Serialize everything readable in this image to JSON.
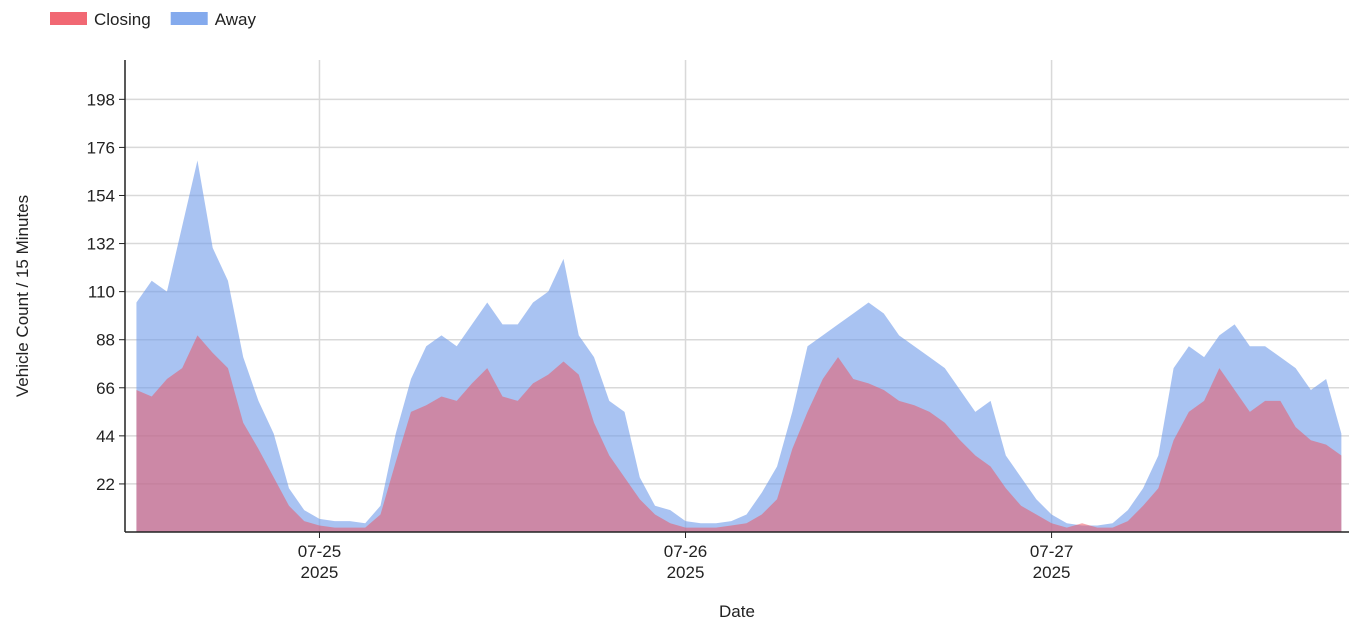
{
  "chart_data": {
    "type": "area",
    "xlabel": "Date",
    "ylabel": "Vehicle Count / 15 Minutes",
    "x": [
      "2025-07-24 12:00",
      "2025-07-24 13:00",
      "2025-07-24 14:00",
      "2025-07-24 15:00",
      "2025-07-24 16:00",
      "2025-07-24 17:00",
      "2025-07-24 18:00",
      "2025-07-24 19:00",
      "2025-07-24 20:00",
      "2025-07-24 21:00",
      "2025-07-24 22:00",
      "2025-07-24 23:00",
      "2025-07-25 00:00",
      "2025-07-25 01:00",
      "2025-07-25 02:00",
      "2025-07-25 03:00",
      "2025-07-25 04:00",
      "2025-07-25 05:00",
      "2025-07-25 06:00",
      "2025-07-25 07:00",
      "2025-07-25 08:00",
      "2025-07-25 09:00",
      "2025-07-25 10:00",
      "2025-07-25 11:00",
      "2025-07-25 12:00",
      "2025-07-25 13:00",
      "2025-07-25 14:00",
      "2025-07-25 15:00",
      "2025-07-25 16:00",
      "2025-07-25 17:00",
      "2025-07-25 18:00",
      "2025-07-25 19:00",
      "2025-07-25 20:00",
      "2025-07-25 21:00",
      "2025-07-25 22:00",
      "2025-07-25 23:00",
      "2025-07-26 00:00",
      "2025-07-26 01:00",
      "2025-07-26 02:00",
      "2025-07-26 03:00",
      "2025-07-26 04:00",
      "2025-07-26 05:00",
      "2025-07-26 06:00",
      "2025-07-26 07:00",
      "2025-07-26 08:00",
      "2025-07-26 09:00",
      "2025-07-26 10:00",
      "2025-07-26 11:00",
      "2025-07-26 12:00",
      "2025-07-26 13:00",
      "2025-07-26 14:00",
      "2025-07-26 15:00",
      "2025-07-26 16:00",
      "2025-07-26 17:00",
      "2025-07-26 18:00",
      "2025-07-26 19:00",
      "2025-07-26 20:00",
      "2025-07-26 21:00",
      "2025-07-26 22:00",
      "2025-07-26 23:00",
      "2025-07-27 00:00",
      "2025-07-27 01:00",
      "2025-07-27 02:00",
      "2025-07-27 03:00",
      "2025-07-27 04:00",
      "2025-07-27 05:00",
      "2025-07-27 06:00",
      "2025-07-27 07:00",
      "2025-07-27 08:00",
      "2025-07-27 09:00",
      "2025-07-27 10:00",
      "2025-07-27 11:00",
      "2025-07-27 12:00",
      "2025-07-27 13:00",
      "2025-07-27 14:00",
      "2025-07-27 15:00",
      "2025-07-27 16:00",
      "2025-07-27 17:00",
      "2025-07-27 18:00",
      "2025-07-27 19:00"
    ],
    "series": [
      {
        "name": "Away",
        "color": "#6f9bea",
        "values": [
          105,
          115,
          110,
          140,
          170,
          130,
          115,
          80,
          60,
          45,
          20,
          10,
          6,
          5,
          5,
          4,
          12,
          45,
          70,
          85,
          90,
          85,
          95,
          105,
          95,
          95,
          105,
          110,
          125,
          90,
          80,
          60,
          55,
          25,
          12,
          10,
          5,
          4,
          4,
          5,
          8,
          18,
          30,
          55,
          85,
          90,
          95,
          100,
          105,
          100,
          90,
          85,
          80,
          75,
          65,
          55,
          60,
          35,
          25,
          15,
          8,
          4,
          3,
          3,
          4,
          10,
          20,
          35,
          75,
          85,
          80,
          90,
          95,
          85,
          85,
          80,
          75,
          65,
          70,
          45
        ]
      },
      {
        "name": "Closing",
        "color": "#ef4d5a",
        "values": [
          65,
          62,
          70,
          75,
          90,
          82,
          75,
          50,
          38,
          25,
          12,
          5,
          3,
          2,
          2,
          2,
          8,
          32,
          55,
          58,
          62,
          60,
          68,
          75,
          62,
          60,
          68,
          72,
          78,
          72,
          50,
          35,
          25,
          15,
          8,
          4,
          2,
          2,
          2,
          3,
          4,
          8,
          15,
          38,
          55,
          70,
          80,
          70,
          68,
          65,
          60,
          58,
          55,
          50,
          42,
          35,
          30,
          20,
          12,
          8,
          4,
          2,
          4,
          2,
          2,
          5,
          12,
          20,
          42,
          55,
          60,
          75,
          65,
          55,
          60,
          60,
          48,
          42,
          40,
          35
        ]
      }
    ],
    "legend": [
      "Closing",
      "Away"
    ],
    "legend_position": "top-left",
    "xlim": [
      "2025-07-24 11:15",
      "2025-07-27 19:30"
    ],
    "xticks": [
      {
        "value": "2025-07-25 00:00",
        "label": "07-25 2025"
      },
      {
        "value": "2025-07-26 00:00",
        "label": "07-26 2025"
      },
      {
        "value": "2025-07-27 00:00",
        "label": "07-27 2025"
      }
    ],
    "ylim": [
      0,
      216
    ],
    "yticks": [
      22,
      44,
      66,
      88,
      110,
      132,
      154,
      176,
      198
    ],
    "grid": true
  }
}
